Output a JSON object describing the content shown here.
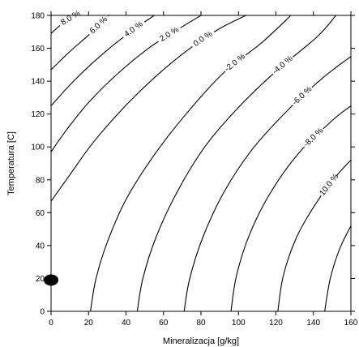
{
  "chart_data": {
    "type": "contour",
    "xlabel": "Mineralizacja [g/kg]",
    "ylabel": "Temperatura [C]",
    "xlim": [
      0,
      160
    ],
    "ylim": [
      0,
      180
    ],
    "x_ticks": [
      0,
      20,
      40,
      60,
      80,
      100,
      120,
      140,
      160
    ],
    "y_ticks": [
      0,
      20,
      40,
      60,
      80,
      100,
      120,
      140,
      160,
      180
    ],
    "grid": false,
    "contours": [
      {
        "label": "8.0 %",
        "points": [
          [
            0,
            169
          ],
          [
            6,
            175
          ],
          [
            13,
            180
          ]
        ]
      },
      {
        "label": "6.0 %",
        "points": [
          [
            0,
            147
          ],
          [
            10,
            158
          ],
          [
            20,
            168
          ],
          [
            31,
            180
          ]
        ]
      },
      {
        "label": "4.0 %",
        "points": [
          [
            0,
            125
          ],
          [
            12,
            140
          ],
          [
            26,
            155
          ],
          [
            40,
            168
          ],
          [
            55,
            180
          ]
        ]
      },
      {
        "label": "2.0 %",
        "points": [
          [
            0,
            97
          ],
          [
            8,
            110
          ],
          [
            20,
            127
          ],
          [
            35,
            144
          ],
          [
            52,
            160
          ],
          [
            67,
            171
          ],
          [
            80,
            180
          ]
        ]
      },
      {
        "label": "0.0 %",
        "points": [
          [
            0,
            67
          ],
          [
            10,
            83
          ],
          [
            22,
            102
          ],
          [
            38,
            123
          ],
          [
            55,
            142
          ],
          [
            73,
            159
          ],
          [
            90,
            172
          ],
          [
            104,
            180
          ]
        ]
      },
      {
        "label": "-2.0 %",
        "points": [
          [
            21,
            0
          ],
          [
            24,
            20
          ],
          [
            30,
            42
          ],
          [
            40,
            68
          ],
          [
            55,
            95
          ],
          [
            72,
            120
          ],
          [
            92,
            145
          ],
          [
            112,
            163
          ],
          [
            128,
            180
          ]
        ]
      },
      {
        "label": "-4.0 %",
        "points": [
          [
            46,
            0
          ],
          [
            49,
            20
          ],
          [
            56,
            45
          ],
          [
            67,
            72
          ],
          [
            82,
            100
          ],
          [
            100,
            124
          ],
          [
            120,
            146
          ],
          [
            142,
            167
          ],
          [
            152,
            180
          ]
        ]
      },
      {
        "label": "-6.0 %",
        "points": [
          [
            71,
            0
          ],
          [
            74,
            20
          ],
          [
            81,
            45
          ],
          [
            92,
            72
          ],
          [
            107,
            98
          ],
          [
            126,
            122
          ],
          [
            145,
            142
          ],
          [
            160,
            155
          ]
        ]
      },
      {
        "label": "-8.0 %",
        "points": [
          [
            96,
            0
          ],
          [
            99,
            22
          ],
          [
            106,
            47
          ],
          [
            117,
            72
          ],
          [
            132,
            96
          ],
          [
            150,
            116
          ],
          [
            160,
            125
          ]
        ]
      },
      {
        "label": "-10.0 %",
        "points": [
          [
            121,
            0
          ],
          [
            124,
            22
          ],
          [
            131,
            45
          ],
          [
            141,
            65
          ],
          [
            152,
            82
          ],
          [
            160,
            92
          ]
        ]
      },
      {
        "label": "",
        "points": [
          [
            146,
            0
          ],
          [
            149,
            20
          ],
          [
            154,
            38
          ],
          [
            160,
            52
          ]
        ]
      }
    ],
    "marker": {
      "x": 0,
      "y": 19
    }
  }
}
